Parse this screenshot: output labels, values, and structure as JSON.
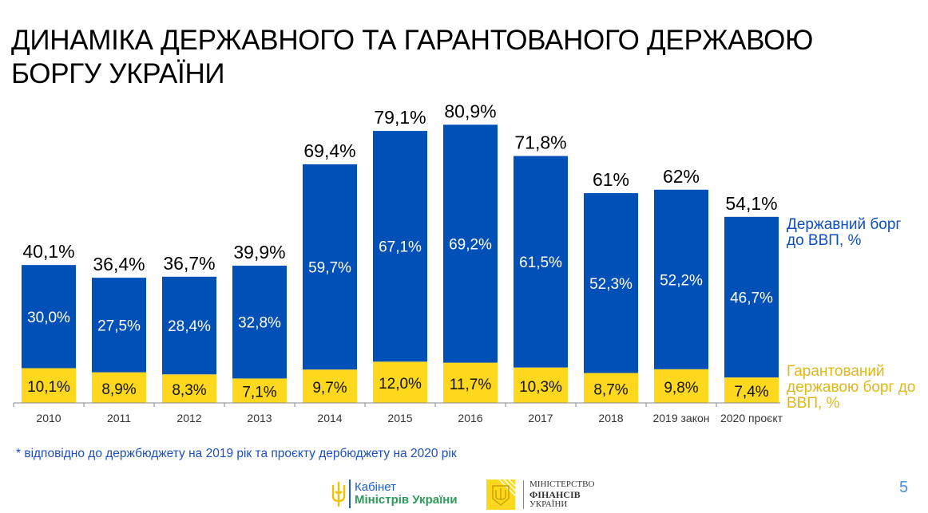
{
  "title_line1": "ДИНАМІКА ДЕРЖАВНОГО ТА ГАРАНТОВАНОГО ДЕРЖАВОЮ",
  "title_line2": "БОРГУ УКРАЇНИ",
  "colors": {
    "government": "#0050b8",
    "guaranteed": "#fed81d",
    "legend_gov": "#0e4fc0",
    "legend_guar": "#e0b818"
  },
  "chart_data": {
    "type": "bar",
    "stacked": true,
    "title": "ДИНАМІКА ДЕРЖАВНОГО ТА ГАРАНТОВАНОГО ДЕРЖАВОЮ БОРГУ УКРАЇНИ",
    "xlabel": "",
    "ylabel": "",
    "ylim": [
      0,
      90
    ],
    "grid": false,
    "legend_placement": "right",
    "categories": [
      "2010",
      "2011",
      "2012",
      "2013",
      "2014",
      "2015",
      "2016",
      "2017",
      "2018",
      "2019 закон",
      "2020 проєкт"
    ],
    "series": [
      {
        "name": "Гарантований державою борг до ВВП, %",
        "values": [
          10.1,
          8.9,
          8.3,
          7.1,
          9.7,
          12.0,
          11.7,
          10.3,
          8.7,
          9.8,
          7.4
        ],
        "labels": [
          "10,1%",
          "8,9%",
          "8,3%",
          "7,1%",
          "9,7%",
          "12,0%",
          "11,7%",
          "10,3%",
          "8,7%",
          "9,8%",
          "7,4%"
        ]
      },
      {
        "name": "Державний борг до ВВП, %",
        "values": [
          30.0,
          27.5,
          28.4,
          32.8,
          59.7,
          67.1,
          69.2,
          61.5,
          52.3,
          52.2,
          46.7
        ],
        "labels": [
          "30,0%",
          "27,5%",
          "28,4%",
          "32,8%",
          "59,7%",
          "67,1%",
          "69,2%",
          "61,5%",
          "52,3%",
          "52,2%",
          "46,7%"
        ]
      }
    ],
    "totals": [
      40.1,
      36.4,
      36.7,
      39.9,
      69.4,
      79.1,
      80.9,
      71.8,
      61,
      62,
      54.1
    ],
    "total_labels": [
      "40,1%",
      "36,4%",
      "36,7%",
      "39,9%",
      "69,4%",
      "79,1%",
      "80,9%",
      "71,8%",
      "61%",
      "62%",
      "54,1%"
    ]
  },
  "legend": {
    "gov_line1": "Державний борг",
    "gov_line2": "до ВВП, %",
    "guar_line1": "Гарантований",
    "guar_line2": "державою борг до",
    "guar_line3": "ВВП, %"
  },
  "footnote": "* відповідно до держбюджету на 2019 рік та проєкту дербюджету на 2020 рік",
  "page_number": "5",
  "logos": {
    "kmu_line1": "Кабінет",
    "kmu_line2": "Міністрів України",
    "mf_line1": "МІНІСТЕРСТВО",
    "mf_line2": "ФІНАНСІВ",
    "mf_line3": "УКРАЇНИ"
  }
}
